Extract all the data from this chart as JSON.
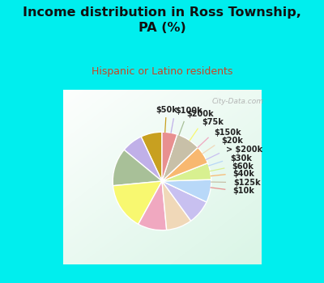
{
  "title": "Income distribution in Ross Township,\nPA (%)",
  "subtitle": "Hispanic or Latino residents",
  "title_color": "#111111",
  "subtitle_color": "#cc4422",
  "bg_cyan": "#00eeee",
  "labels": [
    "$50k",
    "$100k",
    "$200k",
    "$75k",
    "$150k",
    "$20k",
    "> $200k",
    "$30k",
    "$60k",
    "$40k",
    "$125k",
    "$10k"
  ],
  "sizes": [
    7.0,
    7.0,
    12.5,
    15.5,
    9.5,
    8.5,
    8.0,
    7.5,
    5.5,
    6.0,
    8.0,
    5.0
  ],
  "colors": [
    "#c8a020",
    "#c0b0e8",
    "#a8c098",
    "#f8f870",
    "#f0a8c0",
    "#f0d8b8",
    "#c8c0f0",
    "#b8d8f8",
    "#d8f090",
    "#f8b870",
    "#c8c0a8",
    "#e89090"
  ],
  "startangle": 90,
  "watermark": "City-Data.com"
}
